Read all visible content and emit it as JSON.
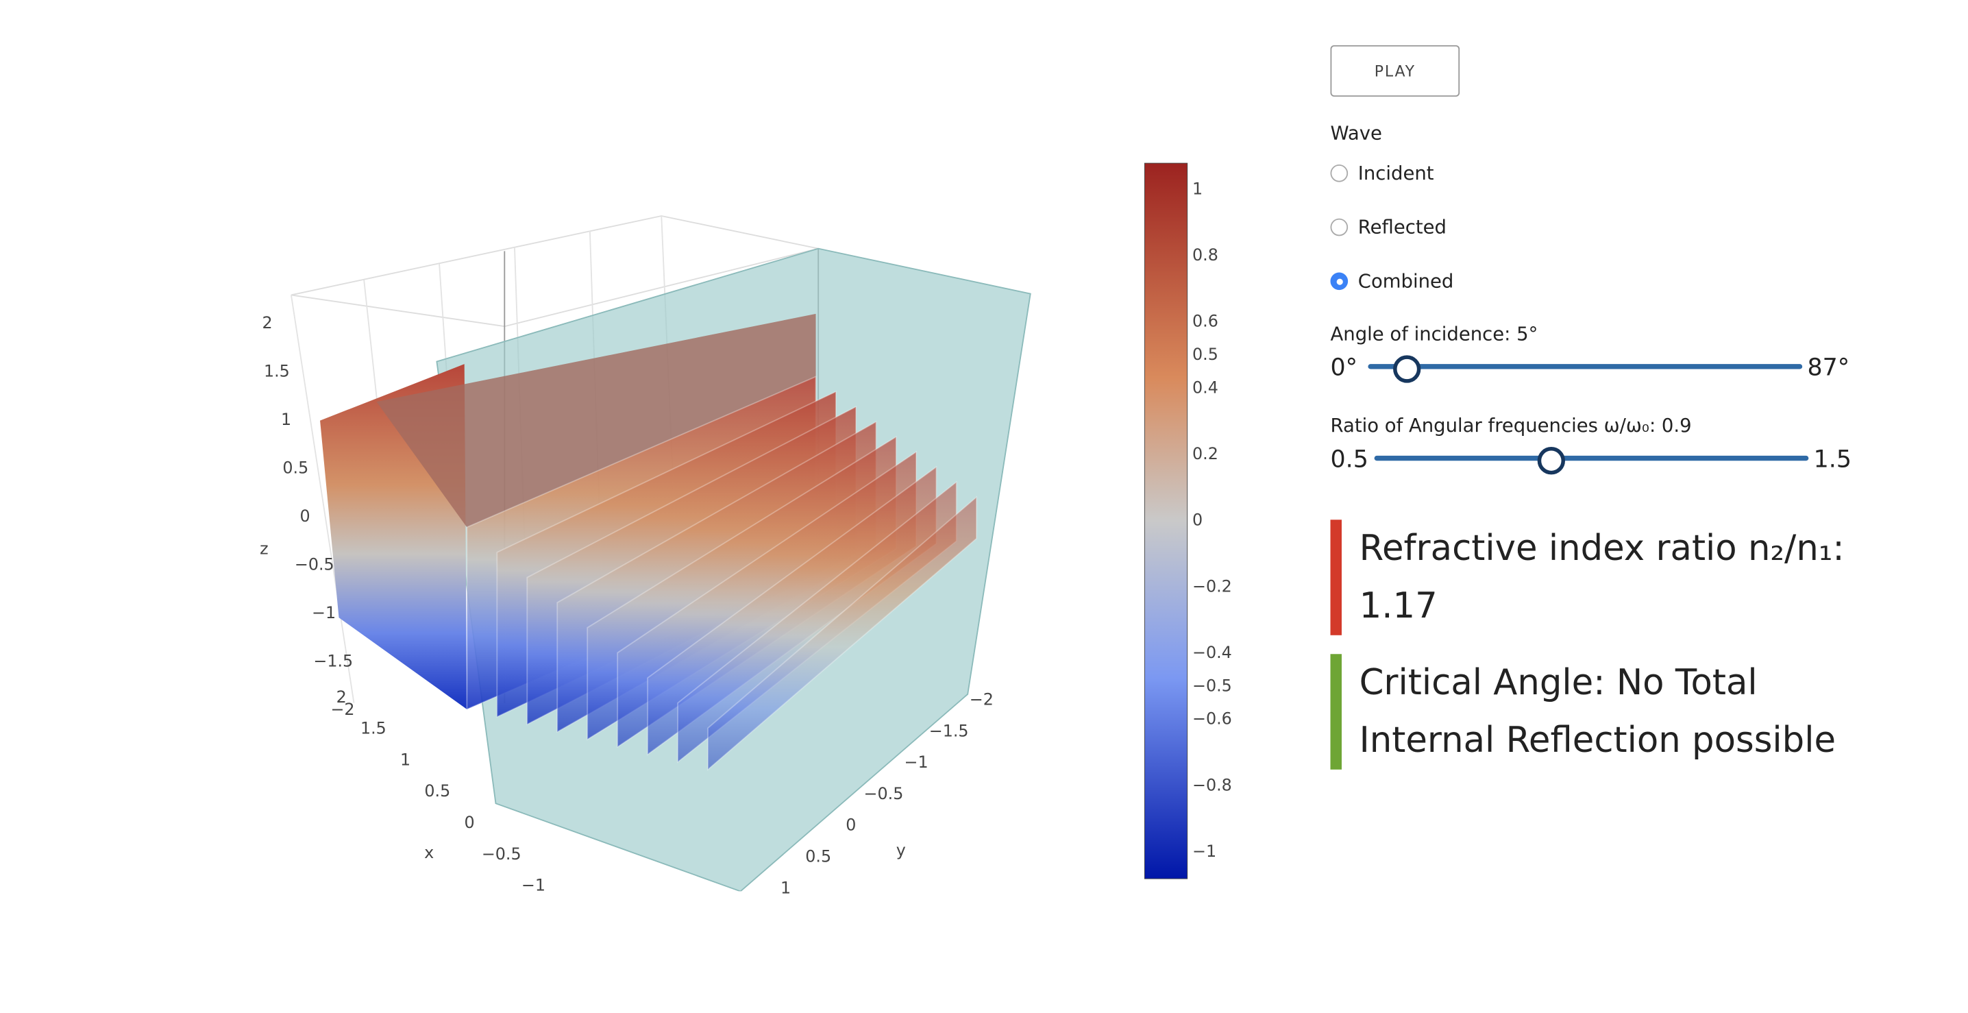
{
  "plot": {
    "axis_titles": {
      "x": "x",
      "y": "y",
      "z": "z"
    },
    "zticks": [
      2,
      1.5,
      1,
      0.5,
      0,
      {
        "value": -0.5,
        "label": "−0.5"
      },
      {
        "value": -1,
        "label": "−1"
      },
      {
        "value": -1.5,
        "label": "−1.5"
      },
      {
        "value": -2,
        "label": "−2"
      }
    ],
    "xticks": [
      2,
      1.5,
      1,
      0.5,
      0,
      {
        "value": -0.5,
        "label": "−0.5"
      },
      {
        "value": -1,
        "label": "−1"
      }
    ],
    "yticks": [
      {
        "value": -2,
        "label": "−2"
      },
      {
        "value": -1.5,
        "label": "−1.5"
      },
      {
        "value": -1,
        "label": "−1"
      },
      {
        "value": -0.5,
        "label": "−0.5"
      },
      0,
      0.5,
      1
    ],
    "colorbar": {
      "range": [
        -1.08,
        1.08
      ],
      "ticks": [
        1,
        0.8,
        0.6,
        0.5,
        0.4,
        0.2,
        0,
        {
          "value": -0.2,
          "label": "−0.2"
        },
        {
          "value": -0.4,
          "label": "−0.4"
        },
        {
          "value": -0.5,
          "label": "−0.5"
        },
        {
          "value": -0.6,
          "label": "−0.6"
        },
        {
          "value": -0.8,
          "label": "−0.8"
        },
        {
          "value": -1,
          "label": "−1"
        }
      ]
    }
  },
  "controls": {
    "play": "PLAY",
    "wave": {
      "label": "Wave",
      "options": [
        "Incident",
        "Reflected",
        "Combined"
      ],
      "selected": 2
    },
    "angle": {
      "label": "Angle of incidence: 5°",
      "value": 5,
      "min": {
        "value": 0,
        "label": "0°"
      },
      "max": {
        "value": 87,
        "label": "87°"
      }
    },
    "ratio": {
      "label": "Ratio of Angular frequencies ω/ω₀: 0.9",
      "value": 0.9,
      "min": 0.5,
      "max": 1.5
    }
  },
  "info": {
    "refractive": {
      "text": "Refractive index ratio n₂/n₁:",
      "value": "1.17"
    },
    "critical": "Critical Angle: No Total Internal Reflection possible"
  }
}
